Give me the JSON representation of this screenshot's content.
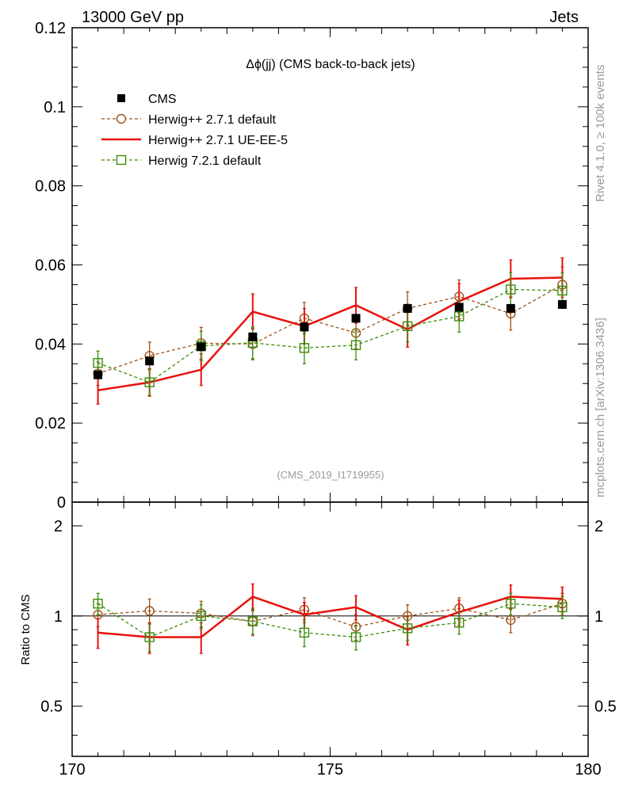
{
  "header": {
    "left": "13000 GeV pp",
    "right": "Jets"
  },
  "side": {
    "top": "Rivet 4.1.0, ≥ 100k events",
    "bottom": "mcplots.cern.ch [arXiv:1306.3436]"
  },
  "chart_data": [
    {
      "type": "line",
      "title": "Δϕ(jj) (CMS back-to-back jets)",
      "watermark": "(CMS_2019_I1719955)",
      "xlim": [
        170,
        180
      ],
      "ylim": [
        0,
        0.12
      ],
      "yticks": [
        0,
        0.02,
        0.04,
        0.06,
        0.08,
        0.1,
        0.12
      ],
      "ytick_labels": [
        "0",
        "0.02",
        "0.04",
        "0.06",
        "0.08",
        "0.1",
        "0.12"
      ],
      "x": [
        170.5,
        171.5,
        172.5,
        173.5,
        174.5,
        175.5,
        176.5,
        177.5,
        178.5,
        179.5
      ],
      "series": [
        {
          "name": "CMS",
          "style": "data",
          "color": "#000000",
          "values": [
            0.0322,
            0.0357,
            0.0393,
            0.0418,
            0.0443,
            0.0465,
            0.049,
            0.0493,
            0.049,
            0.05
          ]
        },
        {
          "name": "Herwig++ 2.7.1 default",
          "style": "circle",
          "color": "#a0521a",
          "values": [
            0.0325,
            0.037,
            0.0402,
            0.04,
            0.0465,
            0.0428,
            0.049,
            0.052,
            0.0477,
            0.055
          ],
          "errors": [
            0.003,
            0.0035,
            0.004,
            0.004,
            0.004,
            0.004,
            0.0042,
            0.0042,
            0.0042,
            0.0045
          ]
        },
        {
          "name": "Herwig++ 2.7.1 UE-EE-5",
          "style": "solid",
          "color": "#e8120c",
          "values": [
            0.0283,
            0.0303,
            0.0335,
            0.0482,
            0.0445,
            0.0498,
            0.0437,
            0.0508,
            0.0565,
            0.0568
          ],
          "errors": [
            0.0035,
            0.0035,
            0.004,
            0.0045,
            0.0045,
            0.0045,
            0.0045,
            0.0045,
            0.0048,
            0.005
          ]
        },
        {
          "name": "Herwig 7.2.1 default",
          "style": "square",
          "color": "#3a8c0c",
          "values": [
            0.0352,
            0.0303,
            0.0395,
            0.0403,
            0.039,
            0.0397,
            0.0445,
            0.047,
            0.0538,
            0.0535
          ],
          "errors": [
            0.003,
            0.0033,
            0.0037,
            0.004,
            0.004,
            0.0037,
            0.004,
            0.004,
            0.0043,
            0.0045
          ]
        }
      ]
    },
    {
      "type": "line",
      "ylabel": "Ratio to CMS",
      "xlim": [
        170,
        180
      ],
      "ylim": [
        0.34,
        2.4
      ],
      "yscale": "log",
      "yticks": [
        0.5,
        1,
        2
      ],
      "ytick_labels": [
        "0.5",
        "1",
        "2"
      ],
      "xticks": [
        170,
        175,
        180
      ],
      "xtick_labels": [
        "170",
        "175",
        "180"
      ],
      "x": [
        170.5,
        171.5,
        172.5,
        173.5,
        174.5,
        175.5,
        176.5,
        177.5,
        178.5,
        179.5
      ],
      "reference": 1,
      "series": [
        {
          "name": "Herwig++ 2.7.1 default",
          "style": "circle",
          "color": "#a0521a",
          "values": [
            1.01,
            1.04,
            1.02,
            0.96,
            1.05,
            0.92,
            1.0,
            1.06,
            0.97,
            1.1
          ],
          "errors": [
            0.09,
            0.1,
            0.1,
            0.1,
            0.1,
            0.09,
            0.09,
            0.09,
            0.09,
            0.09
          ]
        },
        {
          "name": "Herwig++ 2.7.1 UE-EE-5",
          "style": "solid",
          "color": "#e8120c",
          "values": [
            0.88,
            0.85,
            0.85,
            1.16,
            1.01,
            1.07,
            0.9,
            1.03,
            1.16,
            1.14
          ],
          "errors": [
            0.1,
            0.1,
            0.1,
            0.12,
            0.1,
            0.1,
            0.1,
            0.1,
            0.11,
            0.11
          ]
        },
        {
          "name": "Herwig 7.2.1 default",
          "style": "square",
          "color": "#3a8c0c",
          "values": [
            1.1,
            0.85,
            1.0,
            0.96,
            0.88,
            0.85,
            0.91,
            0.95,
            1.1,
            1.07
          ],
          "errors": [
            0.09,
            0.09,
            0.09,
            0.09,
            0.09,
            0.08,
            0.08,
            0.08,
            0.09,
            0.09
          ]
        }
      ]
    }
  ]
}
